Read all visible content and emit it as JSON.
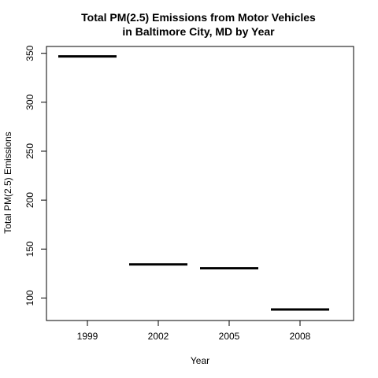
{
  "chart_data": {
    "type": "bar",
    "title_lines": [
      "Total PM(2.5) Emissions from Motor Vehicles",
      "in Baltimore City, MD by Year"
    ],
    "xlabel": "Year",
    "ylabel": "Total PM(2.5) Emissions",
    "categories": [
      "1999",
      "2002",
      "2005",
      "2008"
    ],
    "values": [
      346.82,
      134.31,
      130.43,
      88.28
    ],
    "ylim": [
      77,
      357
    ],
    "yticks": [
      100,
      150,
      200,
      250,
      300,
      350
    ],
    "grid": false,
    "line_color": "#000000"
  }
}
